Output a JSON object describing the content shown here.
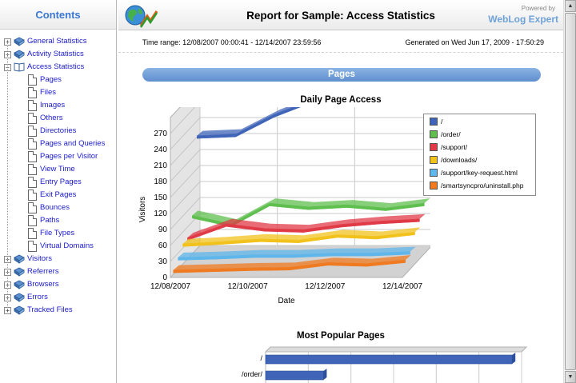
{
  "toc": {
    "title": "Contents",
    "items": [
      {
        "label": "General Statistics",
        "expander": "+"
      },
      {
        "label": "Activity Statistics",
        "expander": "+"
      },
      {
        "label": "Access Statistics",
        "expander": "−",
        "children": [
          "Pages",
          "Files",
          "Images",
          "Others",
          "Directories",
          "Pages and Queries",
          "Pages per Visitor",
          "View Time",
          "Entry Pages",
          "Exit Pages",
          "Bounces",
          "Paths",
          "File Types",
          "Virtual Domains"
        ]
      },
      {
        "label": "Visitors",
        "expander": "+"
      },
      {
        "label": "Referrers",
        "expander": "+"
      },
      {
        "label": "Browsers",
        "expander": "+"
      },
      {
        "label": "Errors",
        "expander": "+"
      },
      {
        "label": "Tracked Files",
        "expander": "+"
      }
    ]
  },
  "header": {
    "title": "Report for Sample: Access Statistics",
    "powered_by": "Powered by",
    "brand": "WebLog Expert"
  },
  "meta": {
    "time_range": "Time range: 12/08/2007 00:00:41 - 12/14/2007 23:59:56",
    "generated": "Generated on Wed Jun 17, 2009 - 17:50:29"
  },
  "section": {
    "title": "Pages"
  },
  "chart_data": [
    {
      "type": "line",
      "title": "Daily Page Access",
      "xlabel": "Date",
      "ylabel": "Visitors",
      "x": [
        "12/08/2007",
        "12/09/2007",
        "12/10/2007",
        "12/11/2007",
        "12/12/2007",
        "12/13/2007",
        "12/14/2007"
      ],
      "x_tick_labels": [
        "12/08/2007",
        "12/10/2007",
        "12/12/2007",
        "12/14/2007"
      ],
      "y_ticks": [
        0,
        30,
        60,
        90,
        120,
        150,
        180,
        210,
        240,
        270
      ],
      "ylim": [
        0,
        300
      ],
      "grid": true,
      "legend": "right",
      "series": [
        {
          "name": "/",
          "color": "#3f64b8",
          "values": [
            212,
            215,
            252,
            280,
            282,
            302,
            302
          ]
        },
        {
          "name": "/order/",
          "color": "#5fbf4e",
          "values": [
            72,
            56,
            95,
            88,
            92,
            86,
            95
          ]
        },
        {
          "name": "/support/",
          "color": "#e03a47",
          "values": [
            40,
            66,
            57,
            55,
            65,
            71,
            75
          ]
        },
        {
          "name": "/downloads/",
          "color": "#f2c21c",
          "values": [
            38,
            42,
            47,
            45,
            55,
            52,
            60
          ]
        },
        {
          "name": "/support/key-request.html",
          "color": "#5eb6ea",
          "values": [
            22,
            24,
            27,
            27,
            30,
            30,
            33
          ]
        },
        {
          "name": "/smartsyncpro/uninstall.php",
          "color": "#ef7a1f",
          "values": [
            8,
            10,
            12,
            13,
            22,
            20,
            27
          ]
        }
      ]
    },
    {
      "type": "bar",
      "orientation": "horizontal",
      "title": "Most Popular Pages",
      "categories": [
        "/",
        "/order/"
      ],
      "values": [
        1830,
        430
      ],
      "color": "#3f64b8"
    }
  ]
}
